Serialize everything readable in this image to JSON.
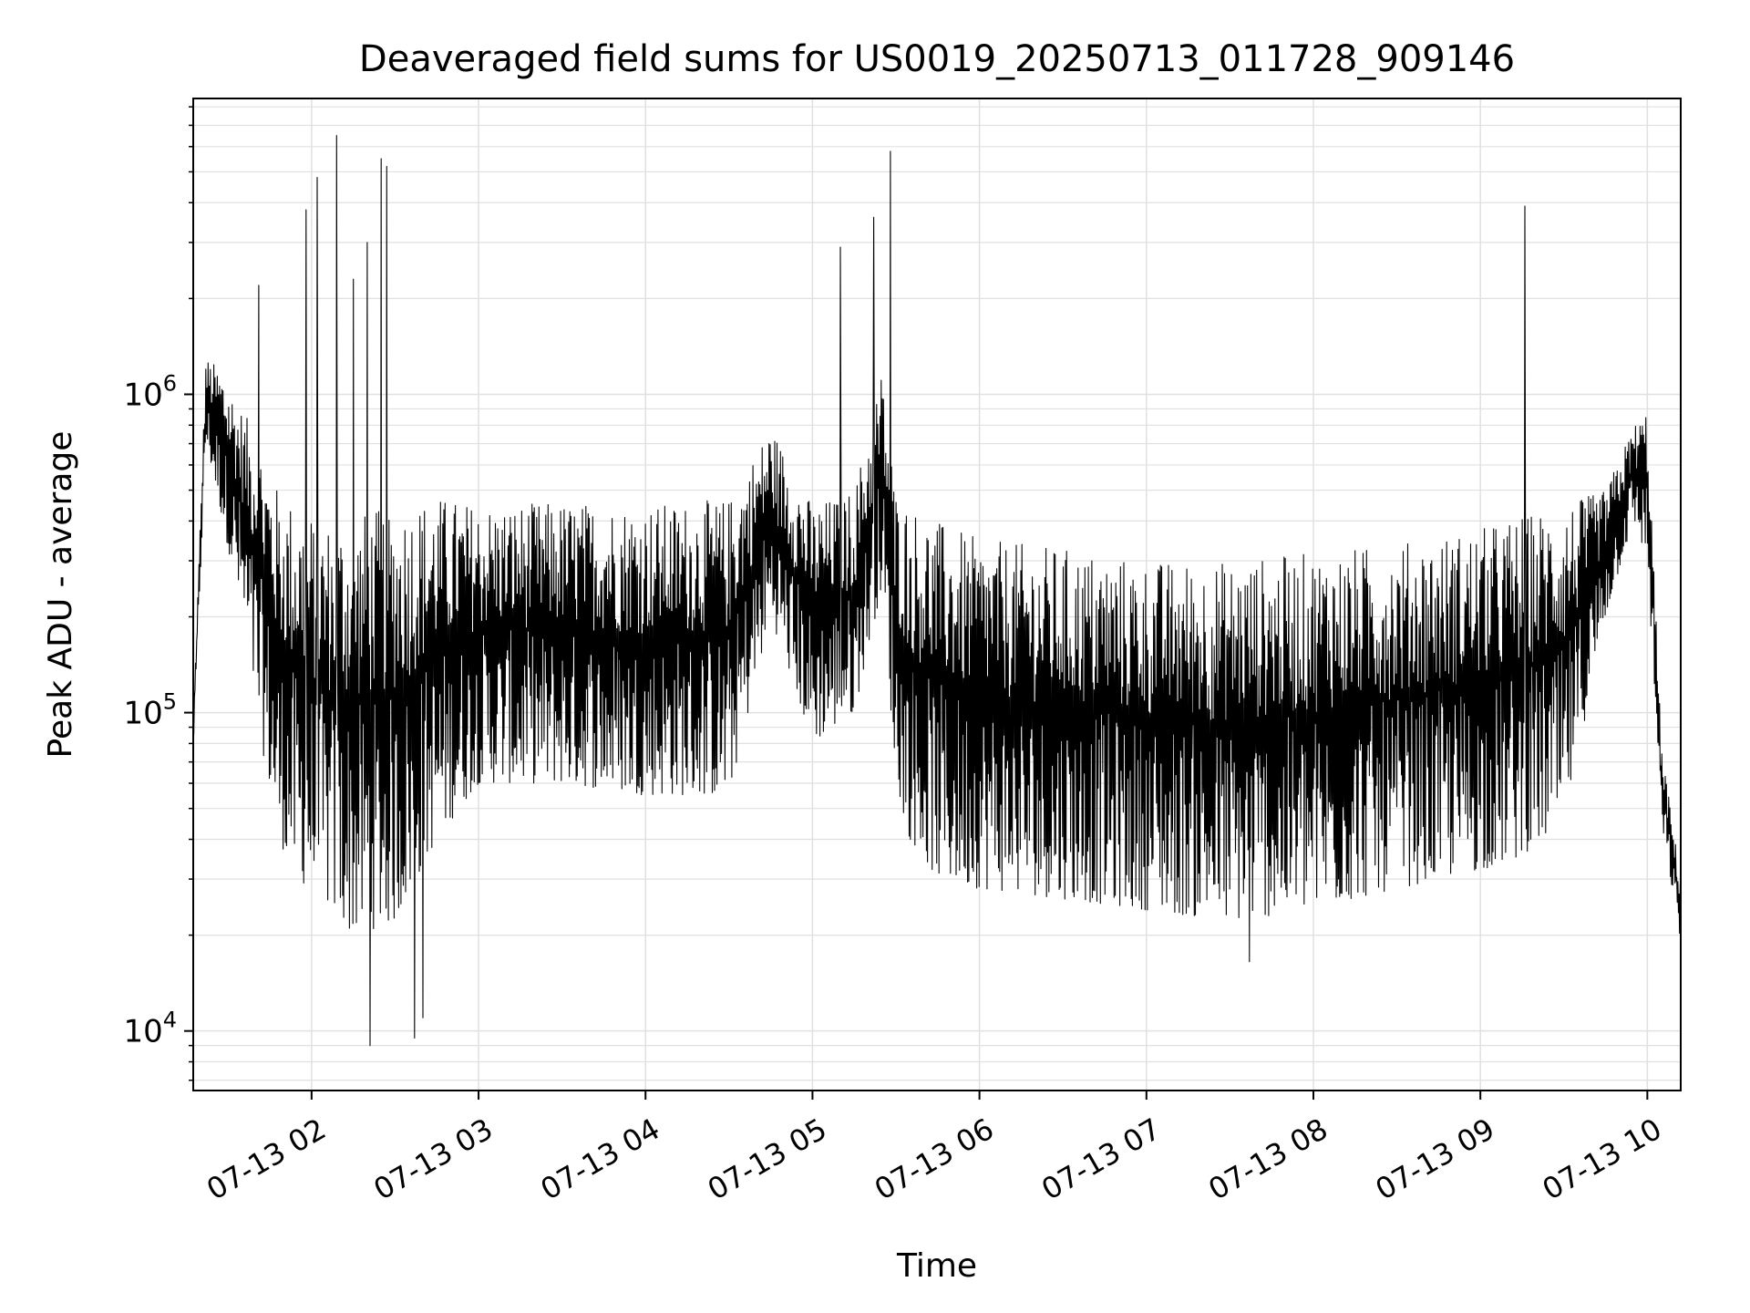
{
  "chart_data": {
    "type": "line",
    "title": "Deaveraged field sums for US0019_20250713_011728_909146",
    "xlabel": "Time",
    "ylabel": "Peak ADU - average",
    "yscale": "log",
    "xlim": [
      "2025-07-13 01:17:28",
      "2025-07-13 10:12:00"
    ],
    "ylim": [
      6500,
      8500000
    ],
    "grid": true,
    "grid_color": "#e0e0e0",
    "line_color": "#000000",
    "x_ticks": [
      "07-13 02",
      "07-13 03",
      "07-13 04",
      "07-13 05",
      "07-13 06",
      "07-13 07",
      "07-13 08",
      "07-13 09",
      "07-13 10"
    ],
    "x_tick_times": [
      "2025-07-13 02:00",
      "2025-07-13 03:00",
      "2025-07-13 04:00",
      "2025-07-13 05:00",
      "2025-07-13 06:00",
      "2025-07-13 07:00",
      "2025-07-13 08:00",
      "2025-07-13 09:00",
      "2025-07-13 10:00"
    ],
    "y_ticks": [
      {
        "value": 10000,
        "base": "10",
        "exp": "4"
      },
      {
        "value": 100000,
        "base": "10",
        "exp": "5"
      },
      {
        "value": 1000000,
        "base": "10",
        "exp": "6"
      }
    ],
    "series": [
      {
        "values_envelope": {
          "x": [
            "01:17",
            "01:22",
            "01:28",
            "01:35",
            "01:42",
            "01:48",
            "01:55",
            "02:05",
            "02:15",
            "02:30",
            "02:45",
            "03:00",
            "03:30",
            "04:00",
            "04:30",
            "04:45",
            "05:00",
            "05:15",
            "05:25",
            "05:30",
            "05:35",
            "05:45",
            "06:00",
            "06:30",
            "07:00",
            "07:30",
            "08:00",
            "08:30",
            "09:00",
            "09:15",
            "09:30",
            "09:45",
            "09:55",
            "10:00",
            "10:05",
            "10:12"
          ],
          "upper": [
            70000,
            1300000,
            1200000,
            900000,
            700000,
            500000,
            450000,
            400000,
            420000,
            450000,
            480000,
            450000,
            460000,
            450000,
            470000,
            800000,
            450000,
            500000,
            1200000,
            500000,
            450000,
            400000,
            350000,
            330000,
            300000,
            300000,
            320000,
            340000,
            380000,
            420000,
            450000,
            500000,
            800000,
            900000,
            80000,
            30000
          ],
          "lower": [
            60000,
            700000,
            400000,
            200000,
            80000,
            40000,
            30000,
            25000,
            20000,
            22000,
            40000,
            60000,
            60000,
            55000,
            55000,
            200000,
            80000,
            100000,
            250000,
            60000,
            40000,
            30000,
            28000,
            26000,
            24000,
            22000,
            24000,
            28000,
            32000,
            35000,
            45000,
            200000,
            400000,
            300000,
            45000,
            19000
          ]
        },
        "spikes": [
          {
            "time": "01:41",
            "value": 2200000
          },
          {
            "time": "01:58",
            "value": 3800000
          },
          {
            "time": "02:02",
            "value": 4800000
          },
          {
            "time": "02:09",
            "value": 6500000
          },
          {
            "time": "02:15",
            "value": 2300000
          },
          {
            "time": "02:20",
            "value": 3000000
          },
          {
            "time": "02:25",
            "value": 5500000
          },
          {
            "time": "02:27",
            "value": 5200000
          },
          {
            "time": "05:10",
            "value": 2900000
          },
          {
            "time": "05:22",
            "value": 3600000
          },
          {
            "time": "05:28",
            "value": 5800000
          },
          {
            "time": "09:16",
            "value": 3900000
          }
        ],
        "dips": [
          {
            "time": "02:21",
            "value": 9000
          },
          {
            "time": "02:37",
            "value": 9500
          },
          {
            "time": "02:40",
            "value": 11000
          },
          {
            "time": "07:37",
            "value": 16500
          }
        ]
      }
    ]
  }
}
